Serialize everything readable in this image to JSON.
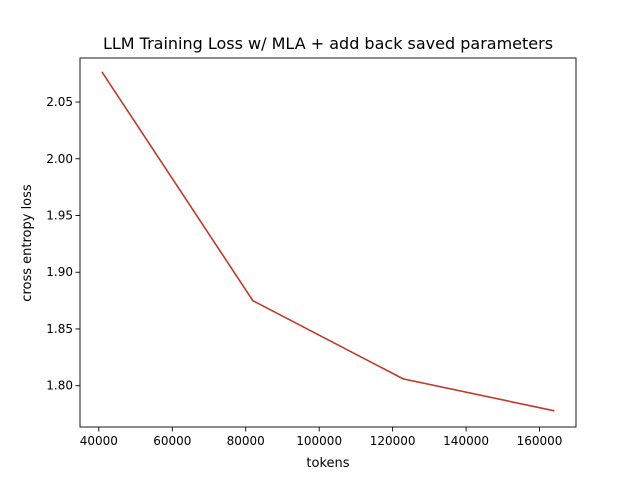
{
  "chart_data": {
    "type": "line",
    "title": "LLM Training Loss w/ MLA + add back saved parameters",
    "xlabel": "tokens",
    "ylabel": "cross entropy loss",
    "xlim": [
      34871,
      169929
    ],
    "ylim": [
      1.7636,
      2.0888
    ],
    "x_ticks": [
      40000,
      60000,
      80000,
      100000,
      120000,
      140000,
      160000
    ],
    "x_tick_labels": [
      "40000",
      "60000",
      "80000",
      "100000",
      "120000",
      "140000",
      "160000"
    ],
    "y_ticks": [
      1.8,
      1.85,
      1.9,
      1.95,
      2.0,
      2.05
    ],
    "y_tick_labels": [
      "1.80",
      "1.85",
      "1.90",
      "1.95",
      "2.00",
      "2.05"
    ],
    "grid": false,
    "legend": false,
    "series": [
      {
        "x": [
          40960,
          81920,
          122880,
          163840
        ],
        "y": [
          2.076,
          1.875,
          1.806,
          1.778
        ],
        "color": "#c0392b"
      }
    ]
  }
}
